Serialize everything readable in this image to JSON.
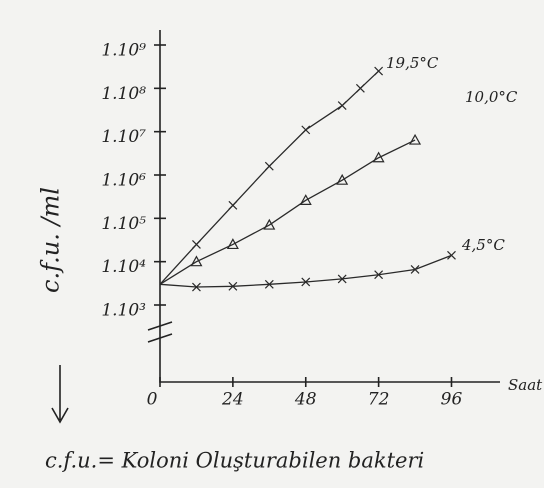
{
  "chart_data": {
    "type": "line",
    "ylabel": "c.f.u. /ml",
    "xlabel": "Saat",
    "footnote": "c.f.u.= Koloni Oluşturabilen bakteri",
    "log_y": true,
    "xlim": [
      0,
      110
    ],
    "xticks": [
      0,
      24,
      48,
      72,
      96
    ],
    "ylim": [
      1000,
      1000000000
    ],
    "yticks": [
      {
        "value": 1000,
        "label": "1.10³"
      },
      {
        "value": 10000,
        "label": "1.10⁴"
      },
      {
        "value": 100000,
        "label": "1.10⁵"
      },
      {
        "value": 1000000,
        "label": "1.10⁶"
      },
      {
        "value": 10000000,
        "label": "1.10⁷"
      },
      {
        "value": 100000000,
        "label": "1.10⁸"
      },
      {
        "value": 1000000000,
        "label": "1.10⁹"
      }
    ],
    "series": [
      {
        "name": "19,5°C",
        "color": "#2a2a2a",
        "marker": "cross",
        "x": [
          0,
          12,
          24,
          36,
          48,
          60,
          66,
          72
        ],
        "values": [
          3000,
          25000,
          200000,
          1600000,
          11000000,
          40000000,
          100000000,
          250000000
        ]
      },
      {
        "name": "10,0°C",
        "color": "#2a2a2a",
        "marker": "triangle",
        "x": [
          0,
          12,
          24,
          36,
          48,
          60,
          72,
          84
        ],
        "values": [
          3000,
          10000,
          25000,
          70000,
          260000,
          760000,
          2500000,
          6400000
        ]
      },
      {
        "name": "4,5°C",
        "color": "#2a2a2a",
        "marker": "cross",
        "x": [
          0,
          12,
          24,
          36,
          48,
          60,
          72,
          84,
          96
        ],
        "values": [
          3000,
          2600,
          2700,
          3000,
          3400,
          4000,
          5000,
          6600,
          14000
        ]
      }
    ]
  }
}
